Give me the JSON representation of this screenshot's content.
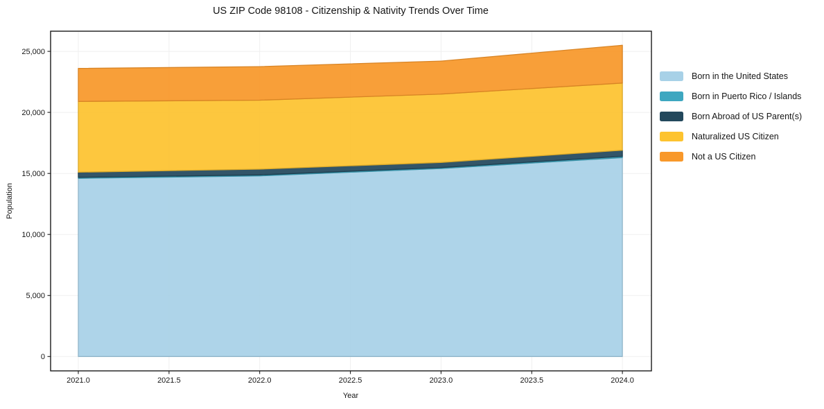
{
  "chart_data": {
    "type": "area",
    "stacked": true,
    "title": "US ZIP Code 98108 - Citizenship & Nativity Trends Over Time",
    "xlabel": "Year",
    "ylabel": "Population",
    "x": [
      2021,
      2022,
      2023,
      2024
    ],
    "series": [
      {
        "name": "Born in the United States",
        "color": "#a8d1e7",
        "values": [
          14600,
          14800,
          15400,
          16300
        ]
      },
      {
        "name": "Born in Puerto Rico / Islands",
        "color": "#3ea7c0",
        "values": [
          80,
          80,
          80,
          100
        ]
      },
      {
        "name": "Born Abroad of US Parent(s)",
        "color": "#23485c",
        "values": [
          420,
          470,
          420,
          500
        ]
      },
      {
        "name": "Naturalized US Citizen",
        "color": "#fdc32f",
        "values": [
          5800,
          5650,
          5600,
          5500
        ]
      },
      {
        "name": "Not a US Citizen",
        "color": "#f8982a",
        "values": [
          2700,
          2750,
          2700,
          3100
        ]
      }
    ],
    "stack_totals": [
      23600,
      23750,
      24200,
      25500
    ],
    "x_ticks": [
      "2021.0",
      "2021.5",
      "2022.0",
      "2022.5",
      "2023.0",
      "2023.5",
      "2024.0"
    ],
    "x_tick_values": [
      2021,
      2021.5,
      2022,
      2022.5,
      2023,
      2023.5,
      2024
    ],
    "y_ticks": [
      "0",
      "5,000",
      "10,000",
      "15,000",
      "20,000",
      "25,000"
    ],
    "y_tick_values": [
      0,
      5000,
      10000,
      15000,
      20000,
      25000
    ],
    "xlim": [
      2020.847,
      2024.16
    ],
    "ylim": [
      -1175,
      26650
    ],
    "grid": true,
    "grid_color": "#efefef",
    "spine_color": "#1a1a1a",
    "legend_position": "right"
  }
}
